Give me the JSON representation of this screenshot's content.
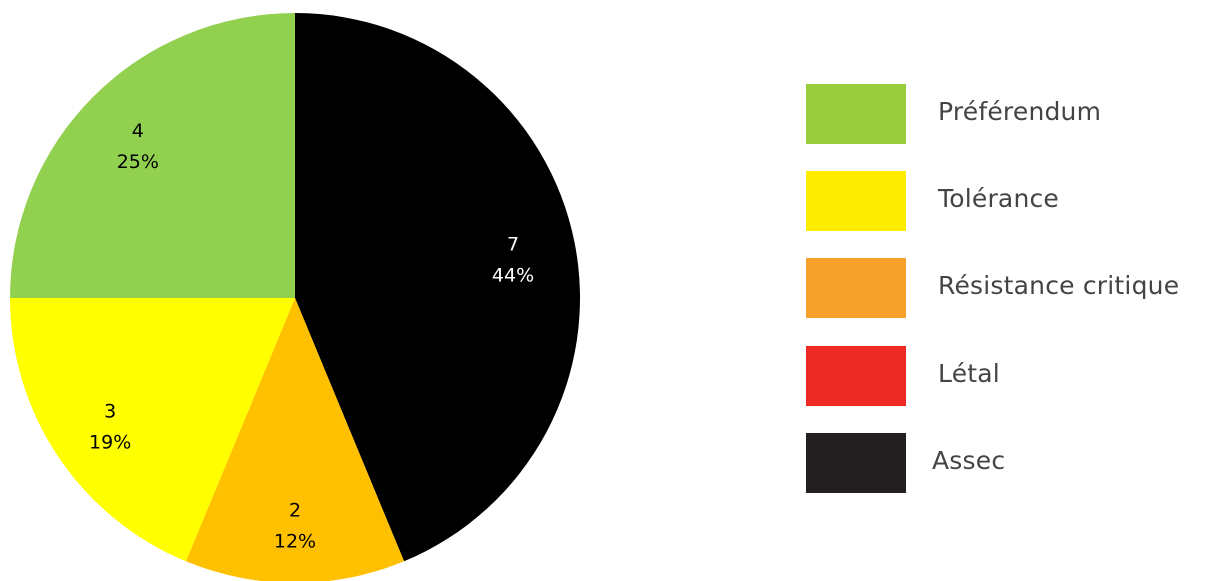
{
  "chart_data": {
    "type": "pie",
    "title": "",
    "slices": [
      {
        "category": "Assec",
        "value": 7,
        "percent_label": "44%",
        "color": "#000000",
        "label_color": "#ffffff"
      },
      {
        "category": "Résistance critique",
        "value": 2,
        "percent_label": "12%",
        "color": "#ffc000",
        "label_color": "#000000"
      },
      {
        "category": "Tolérance",
        "value": 3,
        "percent_label": "19%",
        "color": "#ffff00",
        "label_color": "#000000"
      },
      {
        "category": "Préférendum",
        "value": 4,
        "percent_label": "25%",
        "color": "#92d050",
        "label_color": "#000000"
      }
    ],
    "start_angle_deg": 0,
    "direction": "clockwise",
    "legend_position": "right"
  },
  "legend": {
    "items": [
      {
        "label": "Préférendum",
        "color": "#9acd3c"
      },
      {
        "label": "Tolérance",
        "color": "#ffed00"
      },
      {
        "label": "Résistance critique",
        "color": "#f6a12a"
      },
      {
        "label": "Létal",
        "color": "#ee2a24"
      },
      {
        "label": "Assec",
        "color": "#231f20"
      }
    ]
  }
}
